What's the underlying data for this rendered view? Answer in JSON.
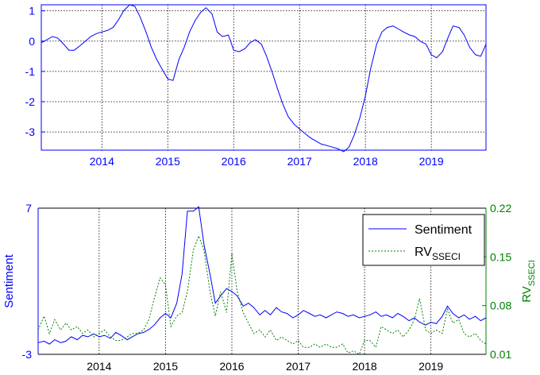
{
  "colors": {
    "blue": "#0000ff",
    "green": "#008000",
    "black": "#000000",
    "grid": "#000000"
  },
  "chart_data": [
    {
      "type": "line",
      "title": "",
      "xlabel": "",
      "ylabel": "",
      "x_ticks": [
        "2014",
        "2015",
        "2016",
        "2017",
        "2018",
        "2019"
      ],
      "y_ticks": [
        "1",
        "0",
        "-1",
        "-2",
        "-3"
      ],
      "xlim": [
        2013.08,
        2019.83
      ],
      "ylim": [
        -3.6,
        1.2
      ],
      "grid": true,
      "series": [
        {
          "color": "#0000ff",
          "style": "solid",
          "x": [
            2013.08,
            2013.17,
            2013.25,
            2013.33,
            2013.42,
            2013.5,
            2013.58,
            2013.67,
            2013.75,
            2013.83,
            2013.92,
            2014.0,
            2014.08,
            2014.17,
            2014.25,
            2014.33,
            2014.42,
            2014.5,
            2014.58,
            2014.67,
            2014.75,
            2014.83,
            2014.92,
            2015.0,
            2015.08,
            2015.17,
            2015.25,
            2015.33,
            2015.42,
            2015.5,
            2015.58,
            2015.67,
            2015.75,
            2015.83,
            2015.92,
            2016.0,
            2016.08,
            2016.17,
            2016.25,
            2016.33,
            2016.42,
            2016.5,
            2016.58,
            2016.67,
            2016.75,
            2016.83,
            2016.92,
            2017.0,
            2017.08,
            2017.17,
            2017.25,
            2017.33,
            2017.42,
            2017.5,
            2017.58,
            2017.67,
            2017.75,
            2017.83,
            2017.92,
            2018.0,
            2018.08,
            2018.17,
            2018.25,
            2018.33,
            2018.42,
            2018.5,
            2018.58,
            2018.67,
            2018.75,
            2018.83,
            2018.92,
            2019.0,
            2019.08,
            2019.17,
            2019.25,
            2019.33,
            2019.42,
            2019.5,
            2019.58,
            2019.67,
            2019.75,
            2019.83
          ],
          "y": [
            -0.05,
            0.05,
            0.15,
            0.1,
            -0.1,
            -0.3,
            -0.3,
            -0.15,
            0.0,
            0.15,
            0.25,
            0.3,
            0.35,
            0.45,
            0.7,
            1.0,
            1.2,
            1.15,
            0.8,
            0.3,
            -0.2,
            -0.6,
            -0.95,
            -1.25,
            -1.3,
            -0.6,
            -0.2,
            0.3,
            0.7,
            0.95,
            1.1,
            0.9,
            0.3,
            0.15,
            0.2,
            -0.3,
            -0.35,
            -0.25,
            -0.05,
            0.05,
            -0.1,
            -0.5,
            -1.0,
            -1.6,
            -2.1,
            -2.5,
            -2.75,
            -2.9,
            -3.05,
            -3.2,
            -3.3,
            -3.4,
            -3.45,
            -3.5,
            -3.55,
            -3.65,
            -3.5,
            -3.1,
            -2.5,
            -1.8,
            -0.9,
            -0.1,
            0.3,
            0.45,
            0.5,
            0.4,
            0.3,
            0.2,
            0.15,
            0.0,
            -0.1,
            -0.45,
            -0.55,
            -0.35,
            0.1,
            0.5,
            0.45,
            0.2,
            -0.2,
            -0.45,
            -0.5,
            -0.1
          ]
        }
      ]
    },
    {
      "type": "line",
      "title": "",
      "xlabel": "",
      "ylabel": "Sentiment",
      "y2label_base": "RV",
      "y2label_sub": "SSECI",
      "x_ticks": [
        "2014",
        "2015",
        "2016",
        "2017",
        "2018",
        "2019"
      ],
      "y_ticks": [
        "7",
        "-3"
      ],
      "y2_ticks": [
        "0.22",
        "0.15",
        "0.08",
        "0.01"
      ],
      "xlim": [
        2013.08,
        2019.83
      ],
      "ylim": [
        -3,
        7
      ],
      "y2lim": [
        0.01,
        0.22
      ],
      "grid": true,
      "legend": "top-right",
      "series": [
        {
          "name": "Sentiment",
          "color": "#0000ff",
          "style": "solid",
          "axis": "left",
          "x": [
            2013.08,
            2013.17,
            2013.25,
            2013.33,
            2013.42,
            2013.5,
            2013.58,
            2013.67,
            2013.75,
            2013.83,
            2013.92,
            2014.0,
            2014.08,
            2014.17,
            2014.25,
            2014.33,
            2014.42,
            2014.5,
            2014.58,
            2014.67,
            2014.75,
            2014.83,
            2014.92,
            2015.0,
            2015.08,
            2015.17,
            2015.25,
            2015.33,
            2015.42,
            2015.5,
            2015.58,
            2015.67,
            2015.75,
            2015.83,
            2015.92,
            2016.0,
            2016.08,
            2016.17,
            2016.25,
            2016.33,
            2016.42,
            2016.5,
            2016.58,
            2016.67,
            2016.75,
            2016.83,
            2016.92,
            2017.0,
            2017.08,
            2017.17,
            2017.25,
            2017.33,
            2017.42,
            2017.5,
            2017.58,
            2017.67,
            2017.75,
            2017.83,
            2017.92,
            2018.0,
            2018.08,
            2018.17,
            2018.25,
            2018.33,
            2018.42,
            2018.5,
            2018.58,
            2018.67,
            2018.75,
            2018.83,
            2018.92,
            2019.0,
            2019.08,
            2019.17,
            2019.25,
            2019.33,
            2019.42,
            2019.5,
            2019.58,
            2019.67,
            2019.75,
            2019.83
          ],
          "y": [
            -2.2,
            -2.1,
            -2.3,
            -2.0,
            -2.2,
            -2.1,
            -1.8,
            -2.0,
            -1.7,
            -1.8,
            -1.6,
            -1.8,
            -1.7,
            -1.9,
            -1.5,
            -1.7,
            -2.0,
            -1.8,
            -1.6,
            -1.5,
            -1.3,
            -1.0,
            -0.5,
            -0.2,
            -0.5,
            0.5,
            2.5,
            6.8,
            6.8,
            7.1,
            4.5,
            2.5,
            0.5,
            1.0,
            1.5,
            1.3,
            1.0,
            0.3,
            0.5,
            0.2,
            -0.3,
            0.0,
            -0.3,
            0.2,
            -0.1,
            -0.2,
            -0.5,
            -0.3,
            0.0,
            -0.2,
            -0.4,
            -0.3,
            -0.5,
            -0.3,
            -0.1,
            -0.2,
            -0.4,
            -0.3,
            -0.5,
            -0.4,
            -0.3,
            -0.1,
            -0.4,
            -0.3,
            -0.5,
            -0.2,
            -0.4,
            -0.7,
            -0.5,
            -0.8,
            -1.0,
            -0.8,
            -0.9,
            -0.4,
            0.3,
            -0.2,
            -0.5,
            -0.3,
            -0.6,
            -0.4,
            -0.7,
            -0.5
          ]
        },
        {
          "name": "RV",
          "name_sub": "SSECI",
          "color": "#008000",
          "style": "dotted",
          "axis": "right",
          "x": [
            2013.08,
            2013.17,
            2013.25,
            2013.33,
            2013.42,
            2013.5,
            2013.58,
            2013.67,
            2013.75,
            2013.83,
            2013.92,
            2014.0,
            2014.08,
            2014.17,
            2014.25,
            2014.33,
            2014.42,
            2014.5,
            2014.58,
            2014.67,
            2014.75,
            2014.83,
            2014.92,
            2015.0,
            2015.08,
            2015.17,
            2015.25,
            2015.33,
            2015.42,
            2015.5,
            2015.58,
            2015.67,
            2015.75,
            2015.83,
            2015.92,
            2016.0,
            2016.08,
            2016.17,
            2016.25,
            2016.33,
            2016.42,
            2016.5,
            2016.58,
            2016.67,
            2016.75,
            2016.83,
            2016.92,
            2017.0,
            2017.08,
            2017.17,
            2017.25,
            2017.33,
            2017.42,
            2017.5,
            2017.58,
            2017.67,
            2017.75,
            2017.83,
            2017.92,
            2018.0,
            2018.08,
            2018.17,
            2018.25,
            2018.33,
            2018.42,
            2018.5,
            2018.58,
            2018.67,
            2018.75,
            2018.83,
            2018.92,
            2019.0,
            2019.08,
            2019.17,
            2019.25,
            2019.33,
            2019.42,
            2019.5,
            2019.58,
            2019.67,
            2019.75,
            2019.83
          ],
          "y": [
            0.045,
            0.065,
            0.04,
            0.06,
            0.045,
            0.055,
            0.045,
            0.05,
            0.04,
            0.045,
            0.035,
            0.04,
            0.045,
            0.035,
            0.03,
            0.03,
            0.035,
            0.04,
            0.04,
            0.045,
            0.06,
            0.09,
            0.12,
            0.11,
            0.05,
            0.065,
            0.07,
            0.1,
            0.16,
            0.18,
            0.16,
            0.1,
            0.065,
            0.1,
            0.07,
            0.155,
            0.1,
            0.07,
            0.055,
            0.04,
            0.045,
            0.035,
            0.045,
            0.03,
            0.035,
            0.03,
            0.025,
            0.03,
            0.02,
            0.02,
            0.025,
            0.02,
            0.025,
            0.02,
            0.02,
            0.025,
            0.012,
            0.015,
            0.01,
            0.03,
            0.03,
            0.02,
            0.05,
            0.045,
            0.04,
            0.045,
            0.035,
            0.045,
            0.06,
            0.09,
            0.045,
            0.04,
            0.045,
            0.04,
            0.075,
            0.055,
            0.06,
            0.04,
            0.035,
            0.04,
            0.03,
            0.025
          ]
        }
      ]
    }
  ]
}
